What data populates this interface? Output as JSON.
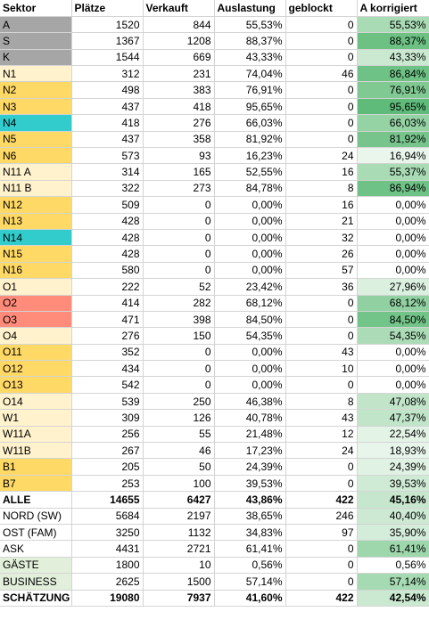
{
  "headers": [
    "Sektor",
    "Plätze",
    "Verkauft",
    "Auslastung",
    "geblockt",
    "A korrigiert"
  ],
  "rows": [
    {
      "cells": [
        "A",
        "1520",
        "844",
        "55,53%",
        "0",
        "55,53%"
      ],
      "sector_color": "#a6a6a6",
      "heat_color": "#a9dbb4",
      "bold": false
    },
    {
      "cells": [
        "S",
        "1367",
        "1208",
        "88,37%",
        "0",
        "88,37%"
      ],
      "sector_color": "#a6a6a6",
      "heat_color": "#6cc183",
      "bold": false
    },
    {
      "cells": [
        "K",
        "1544",
        "669",
        "43,33%",
        "0",
        "43,33%"
      ],
      "sector_color": "#a6a6a6",
      "heat_color": "#cbe9d1",
      "bold": false
    },
    {
      "cells": [
        "N1",
        "312",
        "231",
        "74,04%",
        "46",
        "86,84%"
      ],
      "sector_color": "#fff2cc",
      "heat_color": "#6fc285",
      "bold": false
    },
    {
      "cells": [
        "N2",
        "498",
        "383",
        "76,91%",
        "0",
        "76,91%"
      ],
      "sector_color": "#ffd966",
      "heat_color": "#80c993",
      "bold": false
    },
    {
      "cells": [
        "N3",
        "437",
        "418",
        "95,65%",
        "0",
        "95,65%"
      ],
      "sector_color": "#ffd966",
      "heat_color": "#5fbb79",
      "bold": false
    },
    {
      "cells": [
        "N4",
        "418",
        "276",
        "66,03%",
        "0",
        "66,03%"
      ],
      "sector_color": "#33cccc",
      "heat_color": "#95d2a4",
      "bold": false
    },
    {
      "cells": [
        "N5",
        "437",
        "358",
        "81,92%",
        "0",
        "81,92%"
      ],
      "sector_color": "#ffd966",
      "heat_color": "#77c58c",
      "bold": false
    },
    {
      "cells": [
        "N6",
        "573",
        "93",
        "16,23%",
        "24",
        "16,94%"
      ],
      "sector_color": "#ffd966",
      "heat_color": "#eaf6ec",
      "bold": false
    },
    {
      "cells": [
        "N11 A",
        "314",
        "165",
        "52,55%",
        "16",
        "55,37%"
      ],
      "sector_color": "#fff2cc",
      "heat_color": "#a9dbb5",
      "bold": false
    },
    {
      "cells": [
        "N11 B",
        "322",
        "273",
        "84,78%",
        "8",
        "86,94%"
      ],
      "sector_color": "#fff2cc",
      "heat_color": "#6fc285",
      "bold": false
    },
    {
      "cells": [
        "N12",
        "509",
        "0",
        "0,00%",
        "16",
        "0,00%"
      ],
      "sector_color": "#ffd966",
      "heat_color": "#ffffff",
      "bold": false
    },
    {
      "cells": [
        "N13",
        "428",
        "0",
        "0,00%",
        "21",
        "0,00%"
      ],
      "sector_color": "#ffd966",
      "heat_color": "#ffffff",
      "bold": false
    },
    {
      "cells": [
        "N14",
        "428",
        "0",
        "0,00%",
        "32",
        "0,00%"
      ],
      "sector_color": "#33cccc",
      "heat_color": "#ffffff",
      "bold": false
    },
    {
      "cells": [
        "N15",
        "428",
        "0",
        "0,00%",
        "26",
        "0,00%"
      ],
      "sector_color": "#ffd966",
      "heat_color": "#ffffff",
      "bold": false
    },
    {
      "cells": [
        "N16",
        "580",
        "0",
        "0,00%",
        "57",
        "0,00%"
      ],
      "sector_color": "#ffd966",
      "heat_color": "#ffffff",
      "bold": false
    },
    {
      "cells": [
        "O1",
        "222",
        "52",
        "23,42%",
        "36",
        "27,96%"
      ],
      "sector_color": "#fff2cc",
      "heat_color": "#dcf0e0",
      "bold": false
    },
    {
      "cells": [
        "O2",
        "414",
        "282",
        "68,12%",
        "0",
        "68,12%"
      ],
      "sector_color": "#ff8b7a",
      "heat_color": "#91d0a1",
      "bold": false
    },
    {
      "cells": [
        "O3",
        "471",
        "398",
        "84,50%",
        "0",
        "84,50%"
      ],
      "sector_color": "#ff8b7a",
      "heat_color": "#73c488",
      "bold": false
    },
    {
      "cells": [
        "O4",
        "276",
        "150",
        "54,35%",
        "0",
        "54,35%"
      ],
      "sector_color": "#fff2cc",
      "heat_color": "#acdcb7",
      "bold": false
    },
    {
      "cells": [
        "O11",
        "352",
        "0",
        "0,00%",
        "43",
        "0,00%"
      ],
      "sector_color": "#ffd966",
      "heat_color": "#ffffff",
      "bold": false
    },
    {
      "cells": [
        "O12",
        "434",
        "0",
        "0,00%",
        "10",
        "0,00%"
      ],
      "sector_color": "#ffd966",
      "heat_color": "#ffffff",
      "bold": false
    },
    {
      "cells": [
        "O13",
        "542",
        "0",
        "0,00%",
        "0",
        "0,00%"
      ],
      "sector_color": "#ffd966",
      "heat_color": "#ffffff",
      "bold": false
    },
    {
      "cells": [
        "O14",
        "539",
        "250",
        "46,38%",
        "8",
        "47,08%"
      ],
      "sector_color": "#fff2cc",
      "heat_color": "#c2e5ca",
      "bold": false
    },
    {
      "cells": [
        "W1",
        "309",
        "126",
        "40,78%",
        "43",
        "47,37%"
      ],
      "sector_color": "#fff2cc",
      "heat_color": "#c1e5c9",
      "bold": false
    },
    {
      "cells": [
        "W11A",
        "256",
        "55",
        "21,48%",
        "12",
        "22,54%"
      ],
      "sector_color": "#fff2cc",
      "heat_color": "#e3f3e6",
      "bold": false
    },
    {
      "cells": [
        "W11B",
        "267",
        "46",
        "17,23%",
        "24",
        "18,93%"
      ],
      "sector_color": "#fff2cc",
      "heat_color": "#e8f5eb",
      "bold": false
    },
    {
      "cells": [
        "B1",
        "205",
        "50",
        "24,39%",
        "0",
        "24,39%"
      ],
      "sector_color": "#ffd966",
      "heat_color": "#e0f2e4",
      "bold": false
    },
    {
      "cells": [
        "B7",
        "253",
        "100",
        "39,53%",
        "0",
        "39,53%"
      ],
      "sector_color": "#ffd966",
      "heat_color": "#cfead5",
      "bold": false
    },
    {
      "cells": [
        "ALLE",
        "14655",
        "6427",
        "43,86%",
        "422",
        "45,16%"
      ],
      "sector_color": "#ffffff",
      "heat_color": "#c6e7cd",
      "bold": true
    },
    {
      "cells": [
        "NORD (SW)",
        "5684",
        "2197",
        "38,65%",
        "246",
        "40,40%"
      ],
      "sector_color": "#ffffff",
      "heat_color": "#cde9d3",
      "bold": false
    },
    {
      "cells": [
        "OST (FAM)",
        "3250",
        "1132",
        "34,83%",
        "97",
        "35,90%"
      ],
      "sector_color": "#ffffff",
      "heat_color": "#d4ecda",
      "bold": false
    },
    {
      "cells": [
        "ASK",
        "4431",
        "2721",
        "61,41%",
        "0",
        "61,41%"
      ],
      "sector_color": "#ffffff",
      "heat_color": "#9fd7ad",
      "bold": false
    },
    {
      "cells": [
        "GÄSTE",
        "1800",
        "10",
        "0,56%",
        "0",
        "0,56%"
      ],
      "sector_color": "#e2efda",
      "heat_color": "#ffffff",
      "bold": false
    },
    {
      "cells": [
        "BUSINESS",
        "2625",
        "1500",
        "57,14%",
        "0",
        "57,14%"
      ],
      "sector_color": "#e2efda",
      "heat_color": "#a6dab2",
      "bold": false
    },
    {
      "cells": [
        "SCHÄTZUNG",
        "19080",
        "7937",
        "41,60%",
        "422",
        "42,54%"
      ],
      "sector_color": "#ffffff",
      "heat_color": "#cbe9d1",
      "bold": true
    }
  ]
}
